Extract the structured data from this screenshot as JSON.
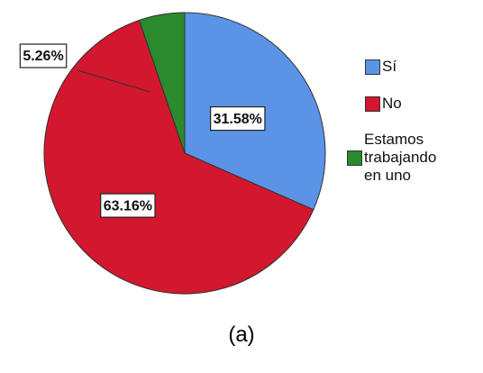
{
  "chart_data": {
    "type": "pie",
    "caption": "(a)",
    "categories": [
      "Sí",
      "No",
      "Estamos trabajando en uno"
    ],
    "values": [
      31.58,
      63.16,
      5.26
    ],
    "value_labels": [
      "31.58%",
      "63.16%",
      "5.26%"
    ],
    "colors": [
      "#5b93e6",
      "#d2172e",
      "#2a8a2e"
    ],
    "legend": "right"
  }
}
